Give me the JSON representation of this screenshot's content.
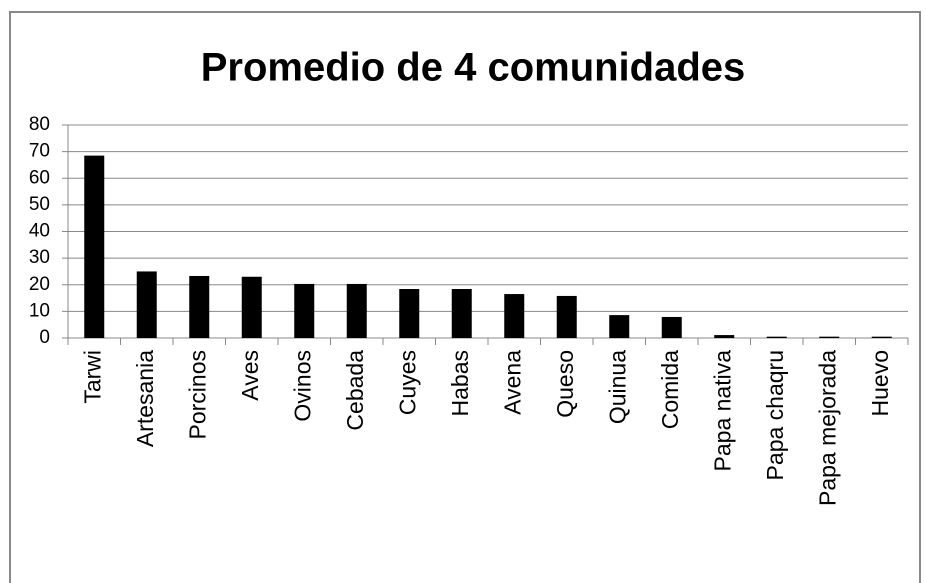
{
  "chart_data": {
    "type": "bar",
    "title": "Promedio de 4 comunidades",
    "categories": [
      "Tarwi",
      "Artesania",
      "Porcinos",
      "Aves",
      "Ovinos",
      "Cebada",
      "Cuyes",
      "Habas",
      "Avena",
      "Queso",
      "Quinua",
      "Comida",
      "Papa nativa",
      "Papa chaqru",
      "Papa mejorada",
      "Huevo"
    ],
    "values": [
      68.5,
      25,
      23.3,
      23,
      20.3,
      20.3,
      18.4,
      18.4,
      16.5,
      15.8,
      8.6,
      7.9,
      1.1,
      0.5,
      0.5,
      0.5
    ],
    "color": "#000000",
    "ylim": [
      0,
      80
    ],
    "yticks": [
      0,
      10,
      20,
      30,
      40,
      50,
      60,
      70,
      80
    ],
    "grid": true
  }
}
